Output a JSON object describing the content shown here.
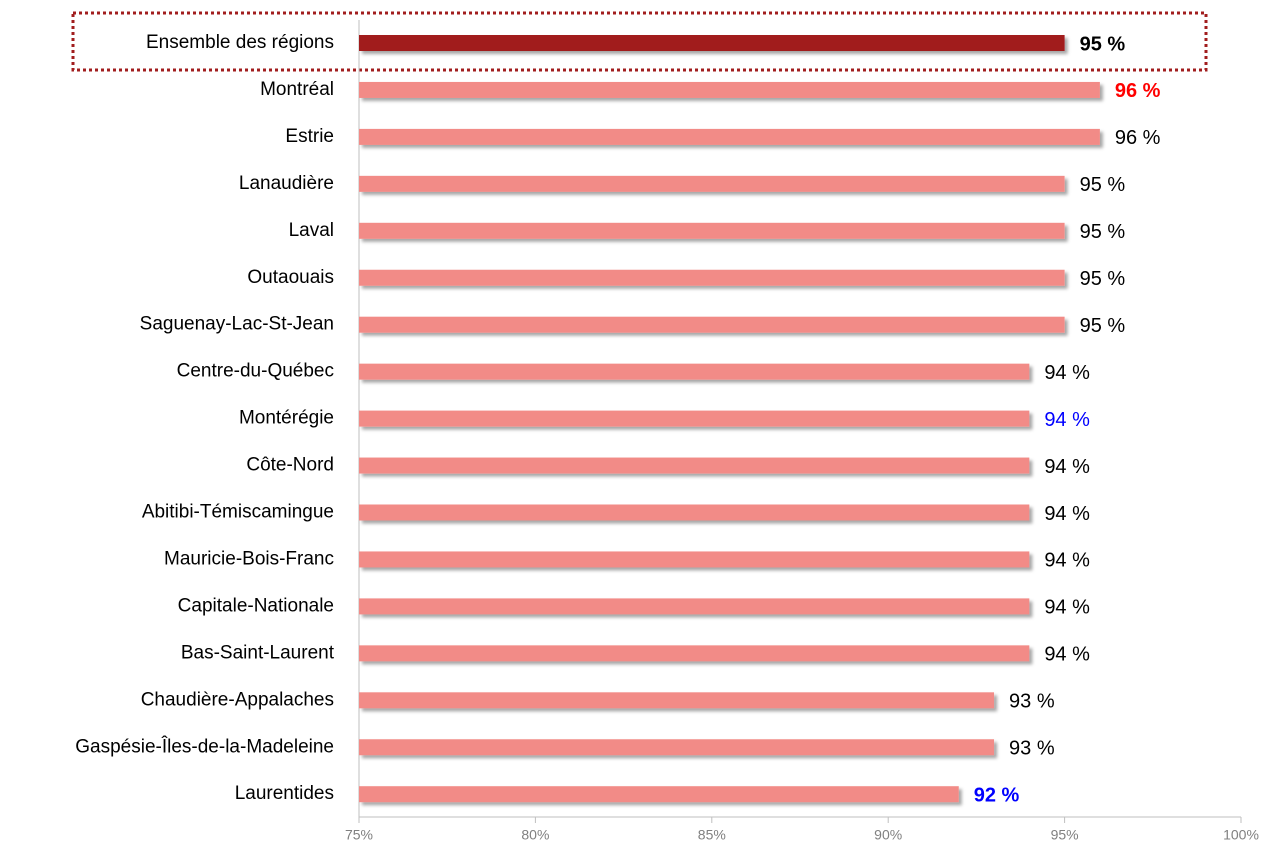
{
  "chart_data": {
    "type": "barh",
    "categories": [
      "Ensemble des régions",
      "Montréal",
      "Estrie",
      "Lanaudière",
      "Laval",
      "Outaouais",
      "Saguenay-Lac-St-Jean",
      "Centre-du-Québec",
      "Montérégie",
      "Côte-Nord",
      "Abitibi-Témiscamingue",
      "Mauricie-Bois-Franc",
      "Capitale-Nationale",
      "Bas-Saint-Laurent",
      "Chaudière-Appalaches",
      "Gaspésie-Îles-de-la-Madeleine",
      "Laurentides"
    ],
    "values": [
      95,
      96,
      96,
      95,
      95,
      95,
      95,
      94,
      94,
      94,
      94,
      94,
      94,
      94,
      93,
      93,
      92
    ],
    "value_labels": [
      "95 %",
      "96 %",
      "96 %",
      "95 %",
      "95 %",
      "95 %",
      "95 %",
      "94 %",
      "94 %",
      "94 %",
      "94 %",
      "94 %",
      "94 %",
      "94 %",
      "93 %",
      "93 %",
      "92 %"
    ],
    "bar_colors": [
      "#a11d1e",
      "#f28b87",
      "#f28b87",
      "#f28b87",
      "#f28b87",
      "#f28b87",
      "#f28b87",
      "#f28b87",
      "#f28b87",
      "#f28b87",
      "#f28b87",
      "#f28b87",
      "#f28b87",
      "#f28b87",
      "#f28b87",
      "#f28b87",
      "#f28b87"
    ],
    "label_colors": [
      "#000000",
      "#ff0000",
      "#000000",
      "#000000",
      "#000000",
      "#000000",
      "#000000",
      "#000000",
      "#0000ff",
      "#000000",
      "#000000",
      "#000000",
      "#000000",
      "#000000",
      "#000000",
      "#000000",
      "#0000ff"
    ],
    "label_weights": [
      "bold",
      "bold",
      "normal",
      "normal",
      "normal",
      "normal",
      "normal",
      "normal",
      "normal",
      "normal",
      "normal",
      "normal",
      "normal",
      "normal",
      "normal",
      "normal",
      "bold"
    ],
    "xlim": [
      75,
      100
    ],
    "xticks": [
      {
        "value": 75,
        "label": "75%"
      },
      {
        "value": 80,
        "label": "80%"
      },
      {
        "value": 85,
        "label": "85%"
      },
      {
        "value": 90,
        "label": "90%"
      },
      {
        "value": 95,
        "label": "95%"
      },
      {
        "value": 100,
        "label": "100%"
      }
    ]
  }
}
